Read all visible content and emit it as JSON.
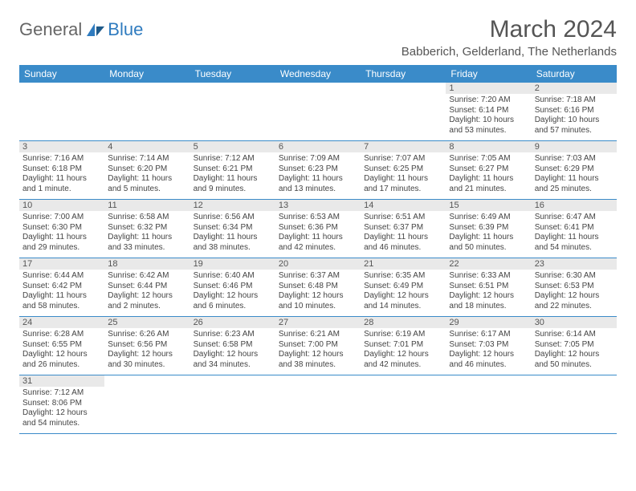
{
  "brand": {
    "part1": "General",
    "part2": "Blue"
  },
  "title": "March 2024",
  "location": "Babberich, Gelderland, The Netherlands",
  "colors": {
    "header_bg": "#3a8bc9",
    "header_fg": "#ffffff",
    "daynum_bg": "#e9e9e9",
    "row_border": "#3a8bc9",
    "brand_blue": "#2f7bbf",
    "text": "#555555"
  },
  "weekdays": [
    "Sunday",
    "Monday",
    "Tuesday",
    "Wednesday",
    "Thursday",
    "Friday",
    "Saturday"
  ],
  "weeks": [
    [
      {
        "n": "",
        "sr": "",
        "ss": "",
        "dl": ""
      },
      {
        "n": "",
        "sr": "",
        "ss": "",
        "dl": ""
      },
      {
        "n": "",
        "sr": "",
        "ss": "",
        "dl": ""
      },
      {
        "n": "",
        "sr": "",
        "ss": "",
        "dl": ""
      },
      {
        "n": "",
        "sr": "",
        "ss": "",
        "dl": ""
      },
      {
        "n": "1",
        "sr": "Sunrise: 7:20 AM",
        "ss": "Sunset: 6:14 PM",
        "dl": "Daylight: 10 hours and 53 minutes."
      },
      {
        "n": "2",
        "sr": "Sunrise: 7:18 AM",
        "ss": "Sunset: 6:16 PM",
        "dl": "Daylight: 10 hours and 57 minutes."
      }
    ],
    [
      {
        "n": "3",
        "sr": "Sunrise: 7:16 AM",
        "ss": "Sunset: 6:18 PM",
        "dl": "Daylight: 11 hours and 1 minute."
      },
      {
        "n": "4",
        "sr": "Sunrise: 7:14 AM",
        "ss": "Sunset: 6:20 PM",
        "dl": "Daylight: 11 hours and 5 minutes."
      },
      {
        "n": "5",
        "sr": "Sunrise: 7:12 AM",
        "ss": "Sunset: 6:21 PM",
        "dl": "Daylight: 11 hours and 9 minutes."
      },
      {
        "n": "6",
        "sr": "Sunrise: 7:09 AM",
        "ss": "Sunset: 6:23 PM",
        "dl": "Daylight: 11 hours and 13 minutes."
      },
      {
        "n": "7",
        "sr": "Sunrise: 7:07 AM",
        "ss": "Sunset: 6:25 PM",
        "dl": "Daylight: 11 hours and 17 minutes."
      },
      {
        "n": "8",
        "sr": "Sunrise: 7:05 AM",
        "ss": "Sunset: 6:27 PM",
        "dl": "Daylight: 11 hours and 21 minutes."
      },
      {
        "n": "9",
        "sr": "Sunrise: 7:03 AM",
        "ss": "Sunset: 6:29 PM",
        "dl": "Daylight: 11 hours and 25 minutes."
      }
    ],
    [
      {
        "n": "10",
        "sr": "Sunrise: 7:00 AM",
        "ss": "Sunset: 6:30 PM",
        "dl": "Daylight: 11 hours and 29 minutes."
      },
      {
        "n": "11",
        "sr": "Sunrise: 6:58 AM",
        "ss": "Sunset: 6:32 PM",
        "dl": "Daylight: 11 hours and 33 minutes."
      },
      {
        "n": "12",
        "sr": "Sunrise: 6:56 AM",
        "ss": "Sunset: 6:34 PM",
        "dl": "Daylight: 11 hours and 38 minutes."
      },
      {
        "n": "13",
        "sr": "Sunrise: 6:53 AM",
        "ss": "Sunset: 6:36 PM",
        "dl": "Daylight: 11 hours and 42 minutes."
      },
      {
        "n": "14",
        "sr": "Sunrise: 6:51 AM",
        "ss": "Sunset: 6:37 PM",
        "dl": "Daylight: 11 hours and 46 minutes."
      },
      {
        "n": "15",
        "sr": "Sunrise: 6:49 AM",
        "ss": "Sunset: 6:39 PM",
        "dl": "Daylight: 11 hours and 50 minutes."
      },
      {
        "n": "16",
        "sr": "Sunrise: 6:47 AM",
        "ss": "Sunset: 6:41 PM",
        "dl": "Daylight: 11 hours and 54 minutes."
      }
    ],
    [
      {
        "n": "17",
        "sr": "Sunrise: 6:44 AM",
        "ss": "Sunset: 6:42 PM",
        "dl": "Daylight: 11 hours and 58 minutes."
      },
      {
        "n": "18",
        "sr": "Sunrise: 6:42 AM",
        "ss": "Sunset: 6:44 PM",
        "dl": "Daylight: 12 hours and 2 minutes."
      },
      {
        "n": "19",
        "sr": "Sunrise: 6:40 AM",
        "ss": "Sunset: 6:46 PM",
        "dl": "Daylight: 12 hours and 6 minutes."
      },
      {
        "n": "20",
        "sr": "Sunrise: 6:37 AM",
        "ss": "Sunset: 6:48 PM",
        "dl": "Daylight: 12 hours and 10 minutes."
      },
      {
        "n": "21",
        "sr": "Sunrise: 6:35 AM",
        "ss": "Sunset: 6:49 PM",
        "dl": "Daylight: 12 hours and 14 minutes."
      },
      {
        "n": "22",
        "sr": "Sunrise: 6:33 AM",
        "ss": "Sunset: 6:51 PM",
        "dl": "Daylight: 12 hours and 18 minutes."
      },
      {
        "n": "23",
        "sr": "Sunrise: 6:30 AM",
        "ss": "Sunset: 6:53 PM",
        "dl": "Daylight: 12 hours and 22 minutes."
      }
    ],
    [
      {
        "n": "24",
        "sr": "Sunrise: 6:28 AM",
        "ss": "Sunset: 6:55 PM",
        "dl": "Daylight: 12 hours and 26 minutes."
      },
      {
        "n": "25",
        "sr": "Sunrise: 6:26 AM",
        "ss": "Sunset: 6:56 PM",
        "dl": "Daylight: 12 hours and 30 minutes."
      },
      {
        "n": "26",
        "sr": "Sunrise: 6:23 AM",
        "ss": "Sunset: 6:58 PM",
        "dl": "Daylight: 12 hours and 34 minutes."
      },
      {
        "n": "27",
        "sr": "Sunrise: 6:21 AM",
        "ss": "Sunset: 7:00 PM",
        "dl": "Daylight: 12 hours and 38 minutes."
      },
      {
        "n": "28",
        "sr": "Sunrise: 6:19 AM",
        "ss": "Sunset: 7:01 PM",
        "dl": "Daylight: 12 hours and 42 minutes."
      },
      {
        "n": "29",
        "sr": "Sunrise: 6:17 AM",
        "ss": "Sunset: 7:03 PM",
        "dl": "Daylight: 12 hours and 46 minutes."
      },
      {
        "n": "30",
        "sr": "Sunrise: 6:14 AM",
        "ss": "Sunset: 7:05 PM",
        "dl": "Daylight: 12 hours and 50 minutes."
      }
    ],
    [
      {
        "n": "31",
        "sr": "Sunrise: 7:12 AM",
        "ss": "Sunset: 8:06 PM",
        "dl": "Daylight: 12 hours and 54 minutes."
      },
      {
        "n": "",
        "sr": "",
        "ss": "",
        "dl": ""
      },
      {
        "n": "",
        "sr": "",
        "ss": "",
        "dl": ""
      },
      {
        "n": "",
        "sr": "",
        "ss": "",
        "dl": ""
      },
      {
        "n": "",
        "sr": "",
        "ss": "",
        "dl": ""
      },
      {
        "n": "",
        "sr": "",
        "ss": "",
        "dl": ""
      },
      {
        "n": "",
        "sr": "",
        "ss": "",
        "dl": ""
      }
    ]
  ]
}
